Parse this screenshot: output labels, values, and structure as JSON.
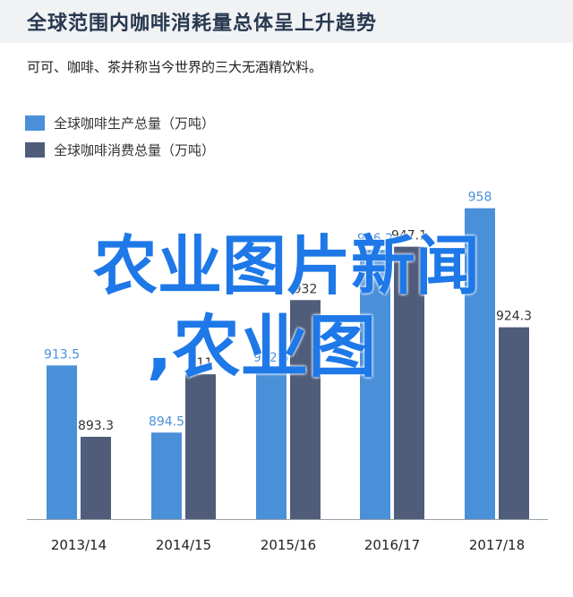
{
  "header": {
    "title": "全球范围内咖啡消耗量总体呈上升趋势",
    "subtitle": "可可、咖啡、茶并称当今世界的三大无酒精饮料。"
  },
  "colors": {
    "production": "#4a90d9",
    "consumption": "#4f5d7a",
    "overlay_text": "#1e78e8"
  },
  "chart_data": {
    "type": "bar",
    "title": "全球范围内咖啡消耗量总体呈上升趋势",
    "subtitle": "可可、咖啡、茶并称当今世界的三大无酒精饮料。",
    "categories": [
      "2013/14",
      "2014/15",
      "2015/16",
      "2016/17",
      "2017/18"
    ],
    "series": [
      {
        "name": "全球咖啡生产总量（万吨）",
        "values": [
          913.5,
          894.5,
          912.5,
          946.2,
          958
        ]
      },
      {
        "name": "全球咖啡消费总量（万吨）",
        "values": [
          893.3,
          911,
          932,
          947.1,
          924.3
        ]
      }
    ],
    "data_labels": [
      [
        "913.5",
        "894.5",
        "912.5",
        "946.2",
        "958"
      ],
      [
        "893.3",
        "911",
        "932",
        "947.1",
        "924.3"
      ]
    ],
    "legend_position": "top-left",
    "grid": false,
    "ylim": [
      870,
      965
    ]
  },
  "overlay": {
    "line1": "农业图片新闻",
    "line2": ",农业图"
  }
}
